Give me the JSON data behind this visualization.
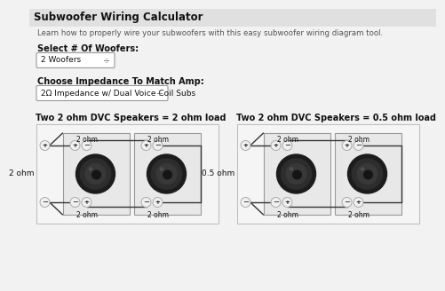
{
  "title": "Subwoofer Wiring Calculator",
  "subtitle": "Learn how to properly wire your subwoofers with this easy subwoofer wiring diagram tool.",
  "label_woofers": "Select # Of Woofers:",
  "dropdown1": "2 Woofers",
  "label_impedance": "Choose Impedance To Match Amp:",
  "dropdown2": "2Ω Impedance w/ Dual Voice Coil Subs",
  "diagram1_title": "Two 2 ohm DVC Speakers = 2 ohm load",
  "diagram2_title": "Two 2 ohm DVC Speakers = 0.5 ohm load",
  "diagram1_side_label": "2 ohm",
  "diagram2_side_label": "0.5 ohm",
  "bg_color": "#f2f2f2",
  "panel_bg": "#ffffff",
  "text_color": "#111111",
  "gray_text": "#555555",
  "circle_fill": "#f0f0f0",
  "circle_edge": "#aaaaaa",
  "wire_color": "#333333",
  "box_edge": "#aaaaaa",
  "speaker_box_fill": "#e8e8e8",
  "drop_fill": "#ffffff",
  "drop_edge": "#999999"
}
